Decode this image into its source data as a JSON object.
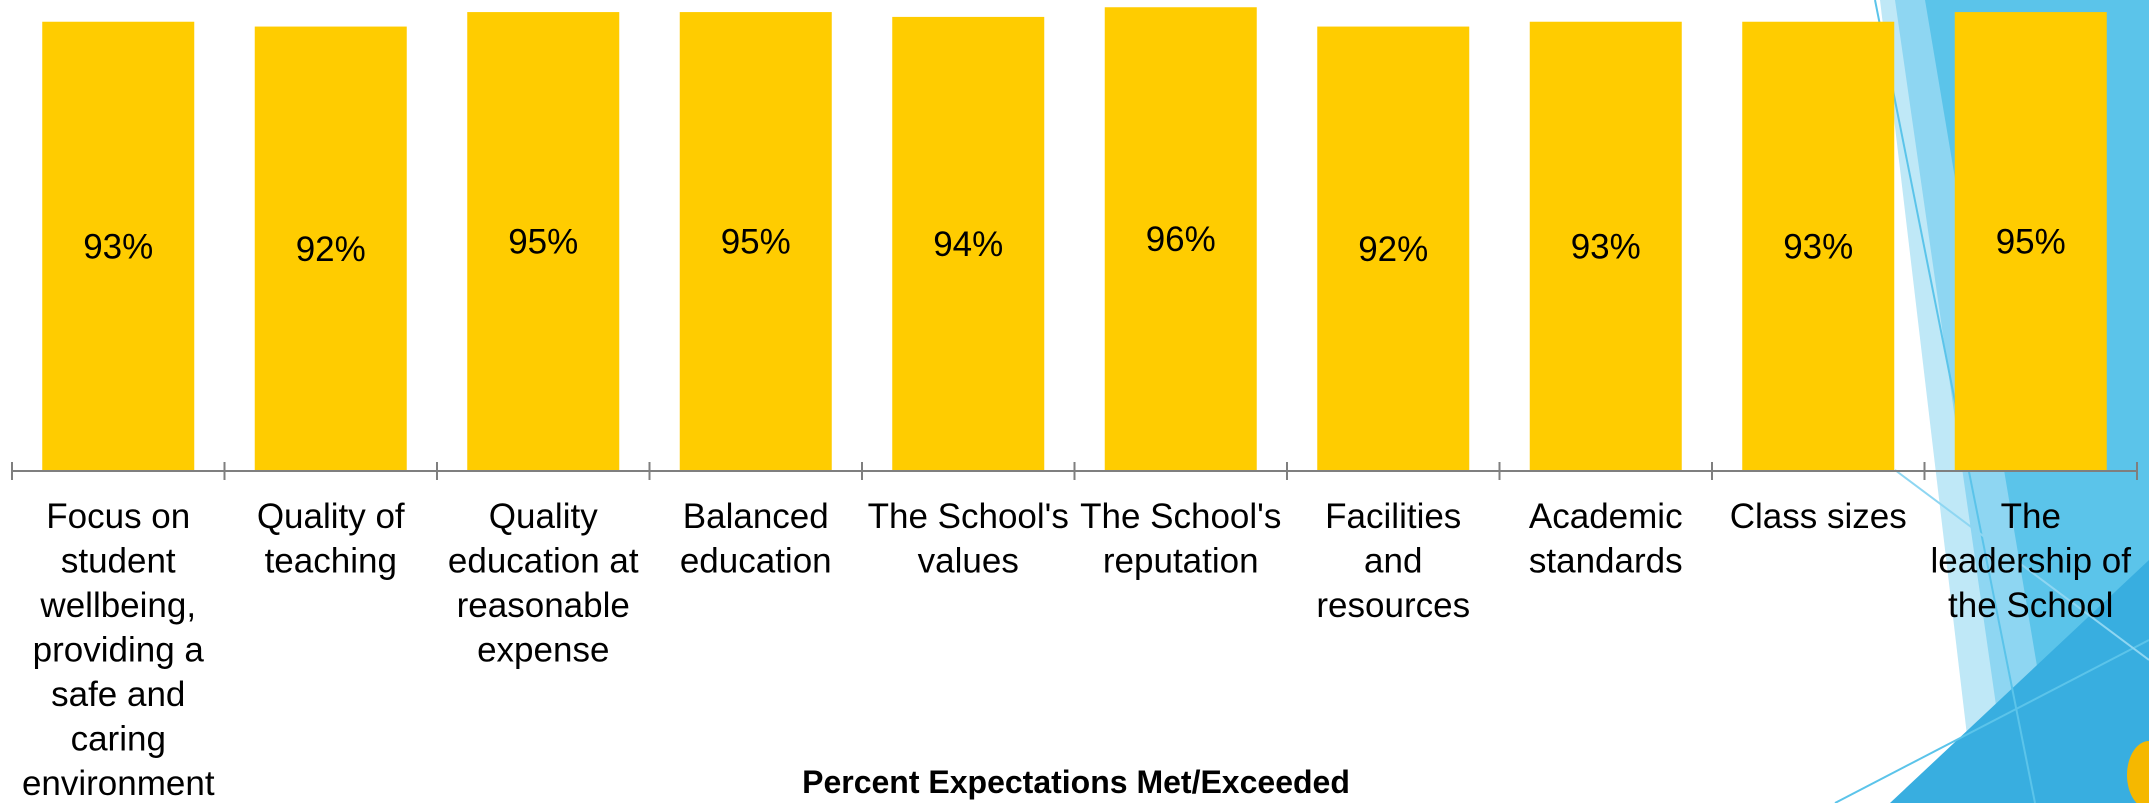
{
  "chart_data": {
    "type": "bar",
    "title": "Percent Expectations Met/Exceeded",
    "xlabel": "",
    "ylabel": "",
    "grid": false,
    "bar_color": "#FFCC00",
    "categories": [
      "Focus on student wellbeing, providing a safe and caring environment",
      "Quality of teaching",
      "Quality education at reasonable expense",
      "Balanced education",
      "The School's values",
      "The School's reputation",
      "Facilities and resources",
      "Academic standards",
      "Class sizes",
      "The leadership of the School"
    ],
    "category_lines": [
      [
        "Focus on",
        "student",
        "wellbeing,",
        "providing a",
        "safe and",
        "caring",
        "environment"
      ],
      [
        "Quality of",
        "teaching"
      ],
      [
        "Quality",
        "education at",
        "reasonable",
        "expense"
      ],
      [
        "Balanced",
        "education"
      ],
      [
        "The School's",
        "values"
      ],
      [
        "The School's",
        "reputation"
      ],
      [
        "Facilities",
        "and",
        "resources"
      ],
      [
        "Academic",
        "standards"
      ],
      [
        "Class sizes"
      ],
      [
        "The",
        "leadership of",
        "the School"
      ]
    ],
    "values": [
      93,
      92,
      95,
      95,
      94,
      96,
      92,
      93,
      93,
      95
    ],
    "data_labels": [
      "93%",
      "92%",
      "95%",
      "95%",
      "94%",
      "96%",
      "92%",
      "93%",
      "93%",
      "95%"
    ],
    "ylim": [
      0,
      97.5
    ]
  },
  "decoration": {
    "colors": [
      "#5BC4EA",
      "#8ED6F2",
      "#BFE8F7",
      "#38AEE0"
    ]
  }
}
